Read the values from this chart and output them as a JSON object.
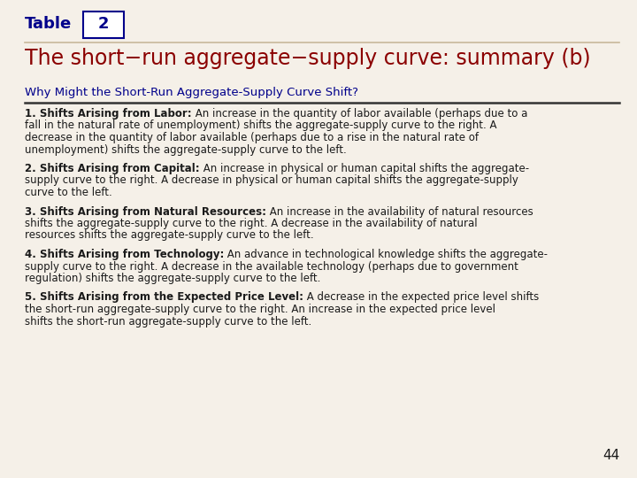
{
  "bg_color": "#f5f0e8",
  "table_label": "Table",
  "table_number": "2",
  "title": "The short−run aggregate−supply curve: summary (b)",
  "section_header": "Why Might the Short-Run Aggregate-Supply Curve Shift?",
  "title_color": "#8b0000",
  "section_header_color": "#00008b",
  "text_color": "#1a1a1a",
  "label_color": "#00008b",
  "page_number": "44",
  "separator_color": "#c8b89a",
  "line_color": "#333333",
  "items": [
    {
      "bold_part": "1. Shifts Arising from Labor:",
      "rest": " An increase in the quantity of labor available (perhaps due to a fall in the natural rate of unemployment) shifts the aggregate-supply curve to the right. A decrease in the quantity of labor available (perhaps due to a rise in the natural rate of unemployment) shifts the aggregate-supply curve to the left."
    },
    {
      "bold_part": "2. Shifts Arising from Capital:",
      "rest": " An increase in physical or human capital shifts the aggregate-supply curve to the right. A decrease in physical or human capital shifts the aggregate-supply curve to the left."
    },
    {
      "bold_part": "3. Shifts Arising from Natural Resources:",
      "rest": " An increase in the availability of natural resources shifts the aggregate-supply curve to the right. A decrease in the availability of natural resources shifts the aggregate-supply curve to the left."
    },
    {
      "bold_part": "4. Shifts Arising from Technology:",
      "rest": " An advance in technological knowledge shifts the aggregate-supply curve to the right. A decrease in the available technology (perhaps due to government regulation) shifts the aggregate-supply curve to the left."
    },
    {
      "bold_part": "5. Shifts Arising from the Expected Price Level:",
      "rest": " A decrease in the expected price level shifts the short-run aggregate-supply curve to the right. An increase in the expected price level shifts the short-run aggregate-supply curve to the left."
    }
  ]
}
